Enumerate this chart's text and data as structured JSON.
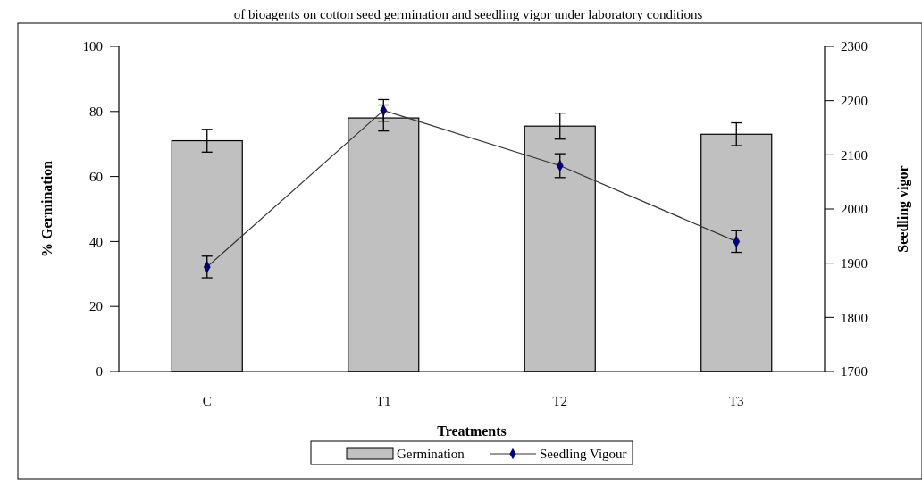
{
  "chart_data": {
    "type": "bar",
    "title": "of bioagents on cotton seed germination and seedling vigor under laboratory conditions",
    "xlabel": "Treatments",
    "ylabel": "% Germination",
    "y2label": "Seedling vigor",
    "categories": [
      "C",
      "T1",
      "T2",
      "T3"
    ],
    "series": [
      {
        "name": "Germination",
        "color": "#c0c0c0",
        "values": [
          71,
          78,
          75.5,
          73
        ],
        "errors": [
          3.5,
          4,
          4,
          3.5
        ]
      },
      {
        "name": "Seedling Vigour",
        "type": "line",
        "axis": "y2",
        "color": "#000080",
        "values": [
          1893,
          2182,
          2080,
          1940
        ],
        "errors": [
          20,
          20,
          22,
          20
        ]
      }
    ],
    "ylim": [
      0,
      100
    ],
    "yticks": [
      0,
      20,
      40,
      60,
      80,
      100
    ],
    "y2lim": [
      1700,
      2300
    ],
    "y2ticks": [
      1700,
      1800,
      1900,
      2000,
      2100,
      2200,
      2300
    ],
    "grid": false,
    "legend": "bottom",
    "marker": "diamond",
    "line_style": "solid"
  }
}
